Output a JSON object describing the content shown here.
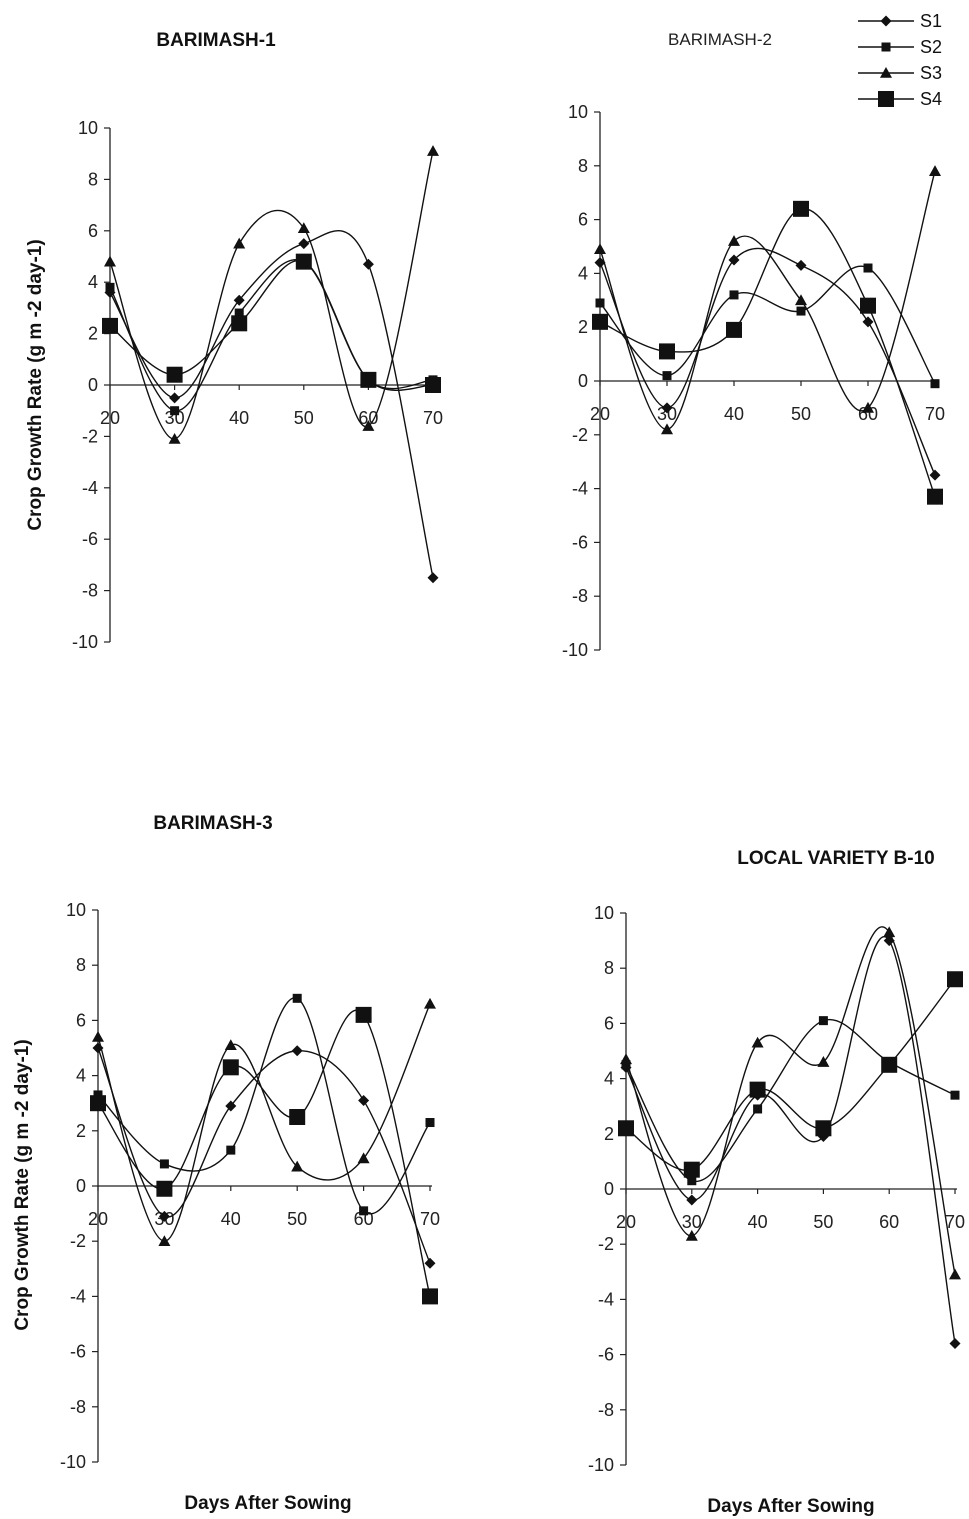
{
  "legend": [
    "S1",
    "S2",
    "S3",
    "S4"
  ],
  "chart_data": [
    {
      "type": "line",
      "title": "BARIMASH-1",
      "ylabel": "Crop Growth Rate (g m -2 day-1)",
      "xlabel": "",
      "ylim": [
        -10,
        10
      ],
      "y_ticks": [
        "-10",
        "-8",
        "-6",
        "-4",
        "-2",
        "0",
        "2",
        "4",
        "6",
        "8",
        "10"
      ],
      "x": [
        20,
        30,
        40,
        50,
        60,
        70
      ],
      "x_ticks": [
        "20",
        "30",
        "40",
        "50",
        "60",
        "70"
      ],
      "series": [
        {
          "name": "S1",
          "marker": "diamond",
          "values": [
            3.6,
            -0.5,
            3.3,
            5.5,
            4.7,
            -7.5
          ]
        },
        {
          "name": "S2",
          "marker": "square-small",
          "values": [
            3.8,
            -1.0,
            2.8,
            4.8,
            0.2,
            0.2
          ]
        },
        {
          "name": "S3",
          "marker": "triangle",
          "values": [
            4.8,
            -2.1,
            5.5,
            6.1,
            -1.6,
            9.1
          ]
        },
        {
          "name": "S4",
          "marker": "square-large",
          "values": [
            2.3,
            0.4,
            2.4,
            4.8,
            0.2,
            0.0
          ]
        }
      ]
    },
    {
      "type": "line",
      "title": "BARIMASH-2",
      "ylabel": "",
      "xlabel": "",
      "ylim": [
        -10,
        10
      ],
      "y_ticks": [
        "-10",
        "-8",
        "-6",
        "-4",
        "-2",
        "0",
        "2",
        "4",
        "6",
        "8",
        "10"
      ],
      "x": [
        20,
        30,
        40,
        50,
        60,
        70
      ],
      "x_ticks": [
        "20",
        "30",
        "40",
        "50",
        "60",
        "70"
      ],
      "series": [
        {
          "name": "S1",
          "marker": "diamond",
          "values": [
            4.4,
            -1.0,
            4.5,
            4.3,
            2.2,
            -3.5
          ]
        },
        {
          "name": "S2",
          "marker": "square-small",
          "values": [
            2.9,
            0.2,
            3.2,
            2.6,
            4.2,
            -0.1
          ]
        },
        {
          "name": "S3",
          "marker": "triangle",
          "values": [
            4.9,
            -1.8,
            5.2,
            3.0,
            -1.0,
            7.8
          ]
        },
        {
          "name": "S4",
          "marker": "square-large",
          "values": [
            2.2,
            1.1,
            1.9,
            6.4,
            2.8,
            -4.3
          ]
        }
      ]
    },
    {
      "type": "line",
      "title": "BARIMASH-3",
      "ylabel": "Crop Growth Rate (g m -2 day-1)",
      "xlabel": "Days After Sowing",
      "ylim": [
        -10,
        10
      ],
      "y_ticks": [
        "-10",
        "-8",
        "-6",
        "-4",
        "-2",
        "0",
        "2",
        "4",
        "6",
        "8",
        "10"
      ],
      "x": [
        20,
        30,
        40,
        50,
        60,
        70
      ],
      "x_ticks": [
        "20",
        "30",
        "40",
        "50",
        "60",
        "70"
      ],
      "series": [
        {
          "name": "S1",
          "marker": "diamond",
          "values": [
            5.0,
            -1.1,
            2.9,
            4.9,
            3.1,
            -2.8
          ]
        },
        {
          "name": "S2",
          "marker": "square-small",
          "values": [
            3.3,
            0.8,
            1.3,
            6.8,
            -0.9,
            2.3
          ]
        },
        {
          "name": "S3",
          "marker": "triangle",
          "values": [
            5.4,
            -2.0,
            5.1,
            0.7,
            1.0,
            6.6
          ]
        },
        {
          "name": "S4",
          "marker": "square-large",
          "values": [
            3.0,
            -0.1,
            4.3,
            2.5,
            6.2,
            -4.0
          ]
        }
      ]
    },
    {
      "type": "line",
      "title": "LOCAL VARIETY B-10",
      "ylabel": "",
      "xlabel": "Days After Sowing",
      "ylim": [
        -10,
        10
      ],
      "y_ticks": [
        "-10",
        "-8",
        "-6",
        "-4",
        "-2",
        "0",
        "2",
        "4",
        "6",
        "8",
        "10"
      ],
      "x": [
        20,
        30,
        40,
        50,
        60,
        70
      ],
      "x_ticks": [
        "20",
        "30",
        "40",
        "50",
        "60",
        "70"
      ],
      "series": [
        {
          "name": "S1",
          "marker": "diamond",
          "values": [
            4.4,
            -0.4,
            3.4,
            1.9,
            9.0,
            -5.6
          ]
        },
        {
          "name": "S2",
          "marker": "square-small",
          "values": [
            4.5,
            0.3,
            2.9,
            6.1,
            4.6,
            3.4
          ]
        },
        {
          "name": "S3",
          "marker": "triangle",
          "values": [
            4.7,
            -1.7,
            5.3,
            4.6,
            9.3,
            -3.1
          ]
        },
        {
          "name": "S4",
          "marker": "square-large",
          "values": [
            2.2,
            0.7,
            3.6,
            2.2,
            4.5,
            7.6
          ]
        }
      ]
    }
  ]
}
